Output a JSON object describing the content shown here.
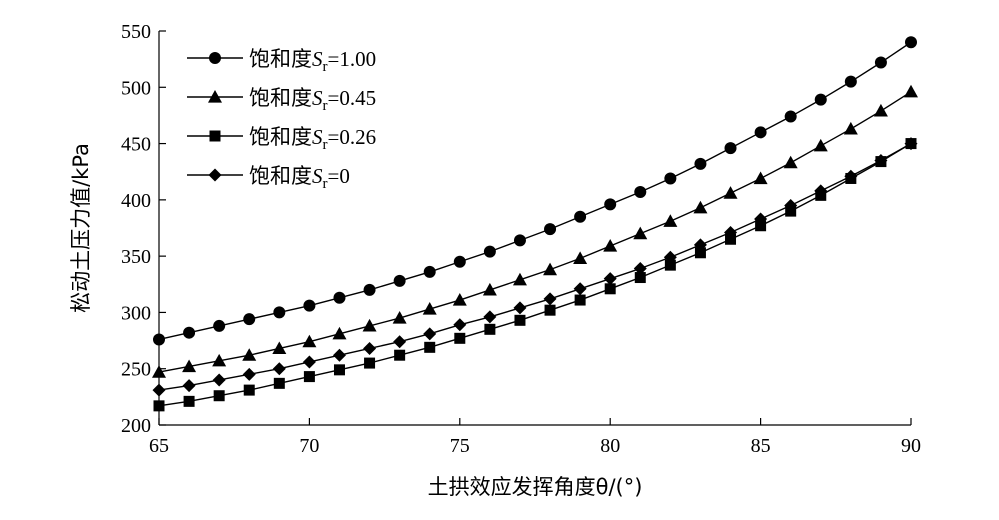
{
  "chart_data": {
    "type": "line",
    "xlabel": "土拱效应发挥角度θ/(°)",
    "ylabel": "松动土压力值/kPa",
    "xlim": [
      65,
      90
    ],
    "ylim": [
      200,
      550
    ],
    "xticks": [
      65,
      70,
      75,
      80,
      85,
      90
    ],
    "yticks": [
      200,
      250,
      300,
      350,
      400,
      450,
      500,
      550
    ],
    "grid": false,
    "legend_position": "top-left",
    "x": [
      65,
      66,
      67,
      68,
      69,
      70,
      71,
      72,
      73,
      74,
      75,
      76,
      77,
      78,
      79,
      80,
      81,
      82,
      83,
      84,
      85,
      86,
      87,
      88,
      89,
      90
    ],
    "series": [
      {
        "name": "饱和度Sr=1.00",
        "legend_prefix": "饱和度",
        "legend_symbol": "S",
        "legend_subscript": "r",
        "legend_value": "=1.00",
        "marker": "circle",
        "values": [
          276,
          282,
          288,
          294,
          300,
          306,
          313,
          320,
          328,
          336,
          345,
          354,
          364,
          374,
          385,
          396,
          407,
          419,
          432,
          446,
          460,
          474,
          489,
          505,
          522,
          540
        ]
      },
      {
        "name": "饱和度Sr=0.45",
        "legend_prefix": "饱和度",
        "legend_symbol": "S",
        "legend_subscript": "r",
        "legend_value": "=0.45",
        "marker": "triangle",
        "values": [
          247,
          252,
          257,
          262,
          268,
          274,
          281,
          288,
          295,
          303,
          311,
          320,
          329,
          338,
          348,
          359,
          370,
          381,
          393,
          406,
          419,
          433,
          448,
          463,
          479,
          496
        ]
      },
      {
        "name": "饱和度Sr=0.26",
        "legend_prefix": "饱和度",
        "legend_symbol": "S",
        "legend_subscript": "r",
        "legend_value": "=0.26",
        "marker": "square",
        "values": [
          217,
          221,
          226,
          231,
          237,
          243,
          249,
          255,
          262,
          269,
          277,
          285,
          293,
          302,
          311,
          321,
          331,
          342,
          353,
          365,
          377,
          390,
          404,
          419,
          434,
          450
        ]
      },
      {
        "name": "饱和度Sr=0",
        "legend_prefix": "饱和度",
        "legend_symbol": "S",
        "legend_subscript": "r",
        "legend_value": "=0",
        "marker": "diamond",
        "values": [
          231,
          235,
          240,
          245,
          250,
          256,
          262,
          268,
          274,
          281,
          289,
          296,
          304,
          312,
          321,
          330,
          339,
          349,
          360,
          371,
          383,
          395,
          408,
          421,
          435,
          450
        ]
      }
    ]
  }
}
